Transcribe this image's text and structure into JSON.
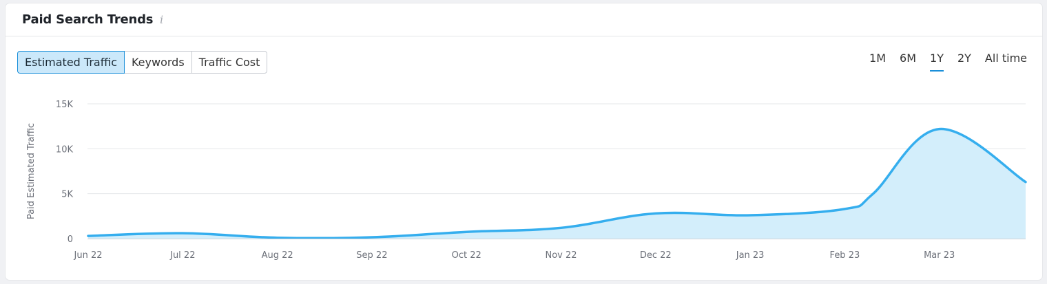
{
  "header": {
    "title": "Paid Search Trends",
    "info_icon": "info-icon"
  },
  "tabs": [
    {
      "label": "Estimated Traffic",
      "active": true
    },
    {
      "label": "Keywords",
      "active": false
    },
    {
      "label": "Traffic Cost",
      "active": false
    }
  ],
  "periods": [
    {
      "label": "1M",
      "active": false
    },
    {
      "label": "6M",
      "active": false
    },
    {
      "label": "1Y",
      "active": true
    },
    {
      "label": "2Y",
      "active": false
    },
    {
      "label": "All time",
      "active": false
    }
  ],
  "colors": {
    "line": "#35aeee",
    "area": "#d3eefb",
    "grid": "#e5e7ea",
    "accent": "#1a8fd9"
  },
  "chart_data": {
    "type": "area",
    "title": "",
    "xlabel": "",
    "ylabel": "Paid Estimated Traffic",
    "ylim": [
      0,
      15000
    ],
    "y_ticks": [
      0,
      5000,
      10000,
      15000
    ],
    "y_tick_labels": [
      "0",
      "5K",
      "10K",
      "15K"
    ],
    "x_tick_labels": [
      "Jun 22",
      "Jul 22",
      "Aug 22",
      "Sep 22",
      "Oct 22",
      "Nov 22",
      "Dec 22",
      "Jan 23",
      "Feb 23",
      "Mar 23"
    ],
    "grid": true,
    "series": [
      {
        "x": [
          0,
          1,
          2,
          3,
          4,
          5,
          6,
          7,
          8,
          8.3,
          9,
          10
        ],
        "values": [
          300,
          600,
          100,
          150,
          750,
          1200,
          2800,
          2600,
          3300,
          5000,
          12200,
          6300
        ]
      }
    ]
  }
}
